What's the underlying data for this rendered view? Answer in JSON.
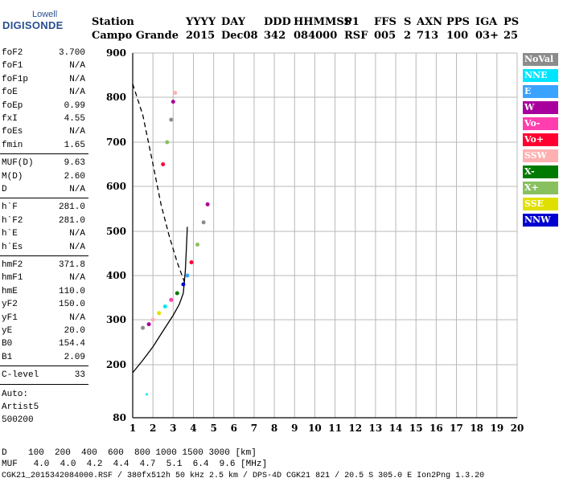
{
  "logo": {
    "top": "Lowell",
    "main": "DIGISONDE"
  },
  "header": {
    "row1": [
      {
        "key": "station_label",
        "text": "Station"
      },
      {
        "key": "yyyy_label",
        "text": "YYYY"
      },
      {
        "key": "day_label",
        "text": "DAY"
      },
      {
        "key": "ddd_label",
        "text": "DDD"
      },
      {
        "key": "hhmmss_label",
        "text": "HHMMSS"
      },
      {
        "key": "p1_label",
        "text": "P1"
      },
      {
        "key": "ffs_label",
        "text": "FFS"
      },
      {
        "key": "s_label",
        "text": "S"
      },
      {
        "key": "axn_label",
        "text": "AXN"
      },
      {
        "key": "pps_label",
        "text": "PPS"
      },
      {
        "key": "iga_label",
        "text": "IGA"
      },
      {
        "key": "ps_label",
        "text": "PS"
      }
    ],
    "row2": [
      {
        "key": "station",
        "text": "Campo Grande"
      },
      {
        "key": "yyyy",
        "text": "2015"
      },
      {
        "key": "day",
        "text": "Dec08"
      },
      {
        "key": "ddd",
        "text": "342"
      },
      {
        "key": "hhmmss",
        "text": "084000"
      },
      {
        "key": "p1",
        "text": "RSF"
      },
      {
        "key": "ffs",
        "text": "005"
      },
      {
        "key": "s",
        "text": "2"
      },
      {
        "key": "axn",
        "text": "713"
      },
      {
        "key": "pps",
        "text": "100"
      },
      {
        "key": "iga",
        "text": "03+"
      },
      {
        "key": "ps",
        "text": "25"
      }
    ]
  },
  "params": {
    "group1": [
      {
        "name": "foF2",
        "value": "3.700"
      },
      {
        "name": "foF1",
        "value": "N/A"
      },
      {
        "name": "foF1p",
        "value": "N/A"
      },
      {
        "name": "foE",
        "value": "N/A"
      },
      {
        "name": "foEp",
        "value": "0.99"
      },
      {
        "name": "fxI",
        "value": "4.55"
      },
      {
        "name": "foEs",
        "value": "N/A"
      },
      {
        "name": "fmin",
        "value": "1.65"
      }
    ],
    "group2": [
      {
        "name": "MUF(D)",
        "value": "9.63"
      },
      {
        "name": "M(D)",
        "value": "2.60"
      },
      {
        "name": "D",
        "value": "N/A"
      }
    ],
    "group3": [
      {
        "name": "h`F",
        "value": "281.0"
      },
      {
        "name": "h`F2",
        "value": "281.0"
      },
      {
        "name": "h`E",
        "value": "N/A"
      },
      {
        "name": "h`Es",
        "value": "N/A"
      }
    ],
    "group4": [
      {
        "name": "hmF2",
        "value": "371.8"
      },
      {
        "name": "hmF1",
        "value": "N/A"
      },
      {
        "name": "hmE",
        "value": "110.0"
      },
      {
        "name": "yF2",
        "value": "150.0"
      },
      {
        "name": "yF1",
        "value": "N/A"
      },
      {
        "name": "yE",
        "value": "20.0"
      },
      {
        "name": "B0",
        "value": "154.4"
      },
      {
        "name": "B1",
        "value": "2.09"
      }
    ],
    "group5": [
      {
        "name": "C-level",
        "value": "33"
      }
    ]
  },
  "autoscale": {
    "line1": "Auto:",
    "line2": "Artist5",
    "line3": "500200"
  },
  "legend": [
    {
      "label": "NoVal",
      "color": "#8c8c8c"
    },
    {
      "label": "NNE",
      "color": "#00e5ff"
    },
    {
      "label": "E",
      "color": "#3aa3ff"
    },
    {
      "label": "W",
      "color": "#a8009c"
    },
    {
      "label": "Vo-",
      "color": "#ff3fb0"
    },
    {
      "label": "Vo+",
      "color": "#ff0030"
    },
    {
      "label": "SSW",
      "color": "#ffb0b0"
    },
    {
      "label": "X-",
      "color": "#007a00"
    },
    {
      "label": "X+",
      "color": "#88c060"
    },
    {
      "label": "SSE",
      "color": "#e0e000"
    },
    {
      "label": "NNW",
      "color": "#0000d0"
    }
  ],
  "bottom": {
    "d_row": "D    100  200  400  600  800 1000 1500 3000 [km]",
    "muf_row": "MUF   4.0  4.0  4.2  4.4  4.7  5.1  6.4  9.6 [MHz]",
    "footer": "CGK21_2015342084000.RSF / 380fx512h 50 kHz 2.5 km / DPS-4D CGK21 821 / 20.5 S 305.0 E Ion2Png 1.3.20"
  },
  "chart_data": {
    "type": "scatter",
    "x_ticks": [
      "1",
      "2",
      "3",
      "4",
      "5",
      "6",
      "7",
      "8",
      "9",
      "10",
      "11",
      "12",
      "13",
      "14",
      "15",
      "16",
      "17",
      "18",
      "19",
      "20"
    ],
    "y_ticks": [
      "80",
      "200",
      "300",
      "400",
      "500",
      "600",
      "700",
      "800",
      "900"
    ],
    "xlim": [
      1,
      20
    ],
    "ylim": [
      80,
      900
    ],
    "y_scale": "nonlinear",
    "grid": true,
    "legend_position": "right",
    "traces": [
      {
        "name": "O-mode trace",
        "values": [
          [
            1.5,
            282
          ],
          [
            1.8,
            290
          ],
          [
            2.0,
            300
          ],
          [
            2.3,
            315
          ],
          [
            2.6,
            330
          ],
          [
            2.9,
            345
          ],
          [
            3.2,
            360
          ],
          [
            3.5,
            380
          ],
          [
            3.7,
            400
          ],
          [
            3.9,
            430
          ],
          [
            4.2,
            470
          ],
          [
            4.5,
            520
          ],
          [
            4.7,
            560
          ]
        ]
      },
      {
        "name": "Spread F",
        "values": [
          [
            2.5,
            650
          ],
          [
            2.7,
            700
          ],
          [
            2.9,
            750
          ],
          [
            3.0,
            790
          ],
          [
            3.1,
            810
          ]
        ]
      },
      {
        "name": "Isolated echo",
        "values": [
          [
            1.7,
            133
          ]
        ]
      }
    ],
    "profile_curve": [
      [
        1.0,
        182
      ],
      [
        1.5,
        210
      ],
      [
        2.0,
        240
      ],
      [
        2.5,
        275
      ],
      [
        3.0,
        310
      ],
      [
        3.3,
        335
      ],
      [
        3.5,
        360
      ],
      [
        3.6,
        410
      ],
      [
        3.65,
        460
      ],
      [
        3.7,
        510
      ]
    ],
    "muf_curve": [
      [
        1.0,
        830
      ],
      [
        1.5,
        760
      ],
      [
        2.0,
        650
      ],
      [
        2.4,
        560
      ],
      [
        2.8,
        490
      ],
      [
        3.2,
        430
      ],
      [
        3.6,
        380
      ]
    ]
  }
}
